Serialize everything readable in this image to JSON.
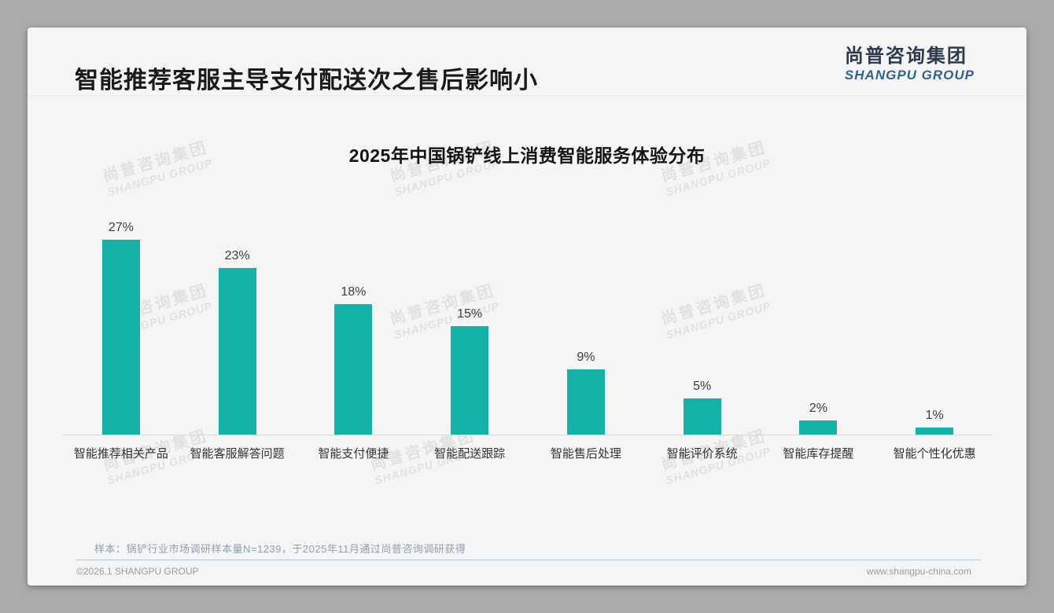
{
  "page": {
    "title": "智能推荐客服主导支付配送次之售后影响小",
    "logo": {
      "cn": "尚普咨询集团",
      "en": "SHANGPU GROUP"
    },
    "note": "样本：锅铲行业市场调研样本量N=1239，于2025年11月通过尚普咨询调研获得",
    "footer": {
      "left": "©2026.1 SHANGPU GROUP",
      "right": "www.shangpu-china.com"
    }
  },
  "watermark": {
    "line1": "尚普咨询集团",
    "line2": "SHANGPU GROUP"
  },
  "colors": {
    "bar": "#13b1a8",
    "logo_navy": "#2d3a4e",
    "logo_blue": "#2f6296",
    "slide_bg": "#f5f5f5",
    "page_bg": "#ababab"
  },
  "chart_data": {
    "type": "bar",
    "title": "2025年中国锅铲线上消费智能服务体验分布",
    "categories": [
      "智能推荐相关产品",
      "智能客服解答问题",
      "智能支付便捷",
      "智能配送跟踪",
      "智能售后处理",
      "智能评价系统",
      "智能库存提醒",
      "智能个性化优惠"
    ],
    "values": [
      27,
      23,
      18,
      15,
      9,
      5,
      2,
      1
    ],
    "unit": "%",
    "data_labels": [
      "27%",
      "23%",
      "18%",
      "15%",
      "9%",
      "5%",
      "2%",
      "1%"
    ],
    "xlabel": "",
    "ylabel": "",
    "ylim": [
      0,
      30
    ],
    "grid": false,
    "legend": false,
    "bar_color": "#13b1a8",
    "value_labels_position": "above-bars",
    "y_axis_visible": false
  }
}
